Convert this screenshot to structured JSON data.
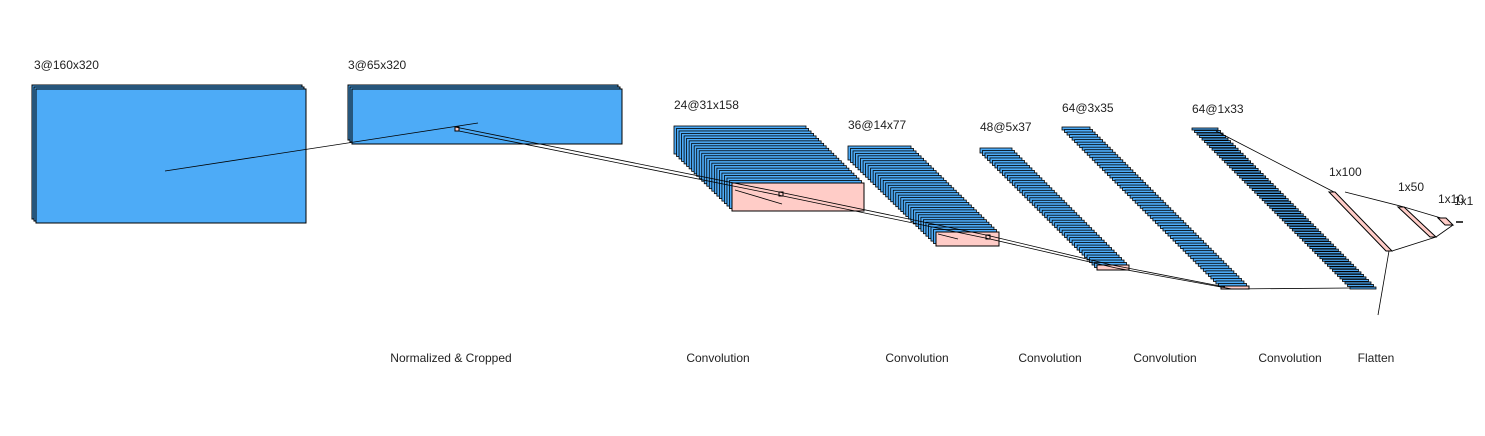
{
  "colors": {
    "feature_map": "#4dabf7",
    "kernel": "#ffccc7",
    "edge": "#000000",
    "connector": "#000000"
  },
  "layers": [
    {
      "shape": "3@160x320"
    },
    {
      "shape": "3@65x320"
    },
    {
      "shape": "24@31x158"
    },
    {
      "shape": "36@14x77"
    },
    {
      "shape": "48@5x37"
    },
    {
      "shape": "64@3x35"
    },
    {
      "shape": "64@1x33"
    },
    {
      "shape": "1x100"
    },
    {
      "shape": "1x50"
    },
    {
      "shape": "1x10"
    },
    {
      "shape": "1x1"
    }
  ],
  "operations": [
    "Normalized & Cropped",
    "Convolution",
    "Convolution",
    "Convolution",
    "Convolution",
    "Convolution",
    "Flatten"
  ]
}
